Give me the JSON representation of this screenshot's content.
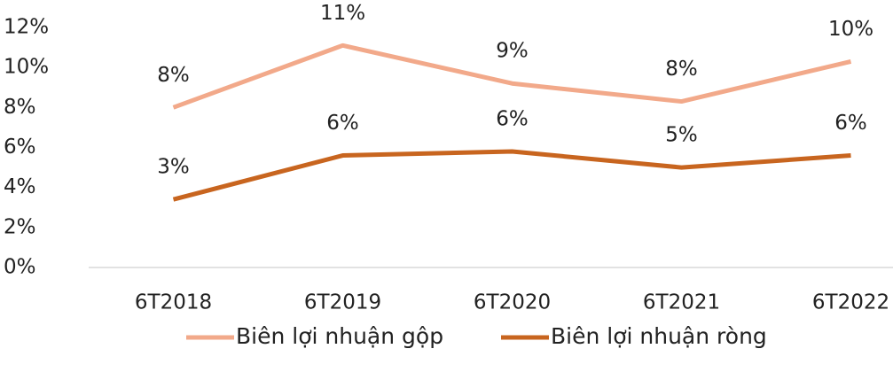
{
  "chart_data": {
    "type": "line",
    "categories": [
      "6T2018",
      "6T2019",
      "6T2020",
      "6T2021",
      "6T2022"
    ],
    "series": [
      {
        "name": "Biên lợi nhuận gộp",
        "color": "#f2a98a",
        "values": [
          8.0,
          11.1,
          9.2,
          8.3,
          10.3
        ],
        "value_labels": [
          "8%",
          "11%",
          "9%",
          "8%",
          "10%"
        ]
      },
      {
        "name": "Biên lợi nhuận ròng",
        "color": "#c8651f",
        "values": [
          3.4,
          5.6,
          5.8,
          5.0,
          5.6
        ],
        "value_labels": [
          "3%",
          "6%",
          "6%",
          "5%",
          "6%"
        ]
      }
    ],
    "ylim": [
      0,
      12
    ],
    "yticks": [
      {
        "value": 0,
        "label": "0%"
      },
      {
        "value": 2,
        "label": "2%"
      },
      {
        "value": 4,
        "label": "4%"
      },
      {
        "value": 6,
        "label": "6%"
      },
      {
        "value": 8,
        "label": "8%"
      },
      {
        "value": 10,
        "label": "10%"
      },
      {
        "value": 12,
        "label": "12%"
      }
    ],
    "grid": false,
    "legend": "bottom"
  }
}
